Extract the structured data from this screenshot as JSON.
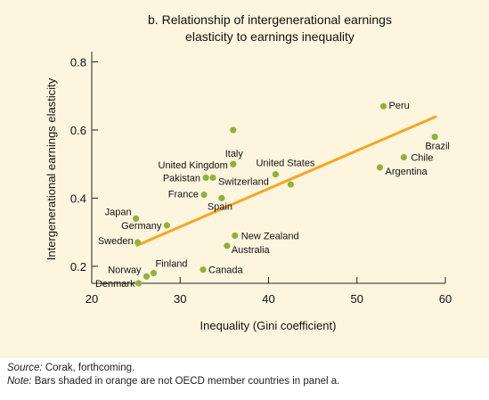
{
  "chart_data": {
    "type": "scatter",
    "title_line1": "b. Relationship of intergenerational earnings",
    "title_line2": "elasticity to earnings inequality",
    "xlabel": "Inequality (Gini coefficient)",
    "ylabel": "Intergenerational earnings elasticity",
    "xlim": [
      20,
      60
    ],
    "ylim": [
      0.15,
      0.83
    ],
    "xticks": [
      20,
      30,
      40,
      50,
      60
    ],
    "yticks": [
      0.2,
      0.4,
      0.6,
      0.8
    ],
    "ytick_labels": [
      "0.2",
      "0.4",
      "0.6",
      "0.8"
    ],
    "grid": false,
    "point_color": "#8db43a",
    "trend_color": "#f5a623",
    "background_color": "#fef5df",
    "points": [
      {
        "label": "Denmark",
        "x": 25.3,
        "y": 0.15
      },
      {
        "label": "Norway",
        "x": 26.2,
        "y": 0.17
      },
      {
        "label": "Finland",
        "x": 27.0,
        "y": 0.18
      },
      {
        "label": "Sweden",
        "x": 25.2,
        "y": 0.27
      },
      {
        "label": "Germany",
        "x": 28.5,
        "y": 0.32
      },
      {
        "label": "Japan",
        "x": 25.0,
        "y": 0.34
      },
      {
        "label": "France",
        "x": 32.7,
        "y": 0.41
      },
      {
        "label": "Spain",
        "x": 34.7,
        "y": 0.4
      },
      {
        "label": "Pakistan",
        "x": 32.9,
        "y": 0.46
      },
      {
        "label": "Switzerland",
        "x": 33.7,
        "y": 0.46
      },
      {
        "label": "United Kingdom",
        "x": 36.0,
        "y": 0.5
      },
      {
        "label": "Italy",
        "x": 36.0,
        "y": 0.5
      },
      {
        "label": "",
        "x": 36.0,
        "y": 0.6
      },
      {
        "label": "United States",
        "x": 40.8,
        "y": 0.47
      },
      {
        "label": "",
        "x": 42.5,
        "y": 0.44
      },
      {
        "label": "New Zealand",
        "x": 36.2,
        "y": 0.29
      },
      {
        "label": "Australia",
        "x": 35.3,
        "y": 0.26
      },
      {
        "label": "Canada",
        "x": 32.6,
        "y": 0.19
      },
      {
        "label": "Peru",
        "x": 53.0,
        "y": 0.67
      },
      {
        "label": "Brazil",
        "x": 58.8,
        "y": 0.58
      },
      {
        "label": "Chile",
        "x": 55.3,
        "y": 0.52
      },
      {
        "label": "Argentina",
        "x": 52.6,
        "y": 0.49
      }
    ],
    "trend_line": {
      "x": [
        25.0,
        59.0
      ],
      "y": [
        0.26,
        0.64
      ]
    }
  },
  "notes": {
    "source_label": "Source:",
    "source_text": " Corak, forthcoming.",
    "note_label": "Note:",
    "note_text": " Bars shaded in orange are not OECD member countries in panel a."
  }
}
